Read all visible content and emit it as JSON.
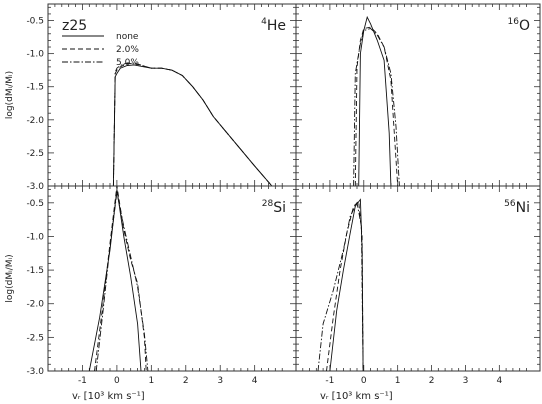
{
  "chart_data": [
    {
      "type": "line",
      "panel": "top-left",
      "element_label": "4He",
      "element_mass": "4",
      "element_symbol": "He",
      "xlabel": "",
      "ylabel": "log(dMᵢ/Mᵢ)",
      "xlim": [
        -2,
        5.2
      ],
      "ylim": [
        -3.0,
        -0.25
      ],
      "model_label": "z25",
      "legend": [
        "none",
        "2.0%",
        "5.0%"
      ],
      "series": [
        {
          "name": "none",
          "dash": "solid",
          "x": [
            -0.1,
            -0.05,
            0.0,
            0.1,
            0.3,
            0.5,
            0.8,
            1.0,
            1.3,
            1.6,
            1.9,
            2.2,
            2.5,
            2.8,
            3.2,
            3.6,
            4.0,
            4.5
          ],
          "y": [
            -3.0,
            -1.35,
            -1.3,
            -1.22,
            -1.18,
            -1.17,
            -1.2,
            -1.22,
            -1.22,
            -1.25,
            -1.33,
            -1.5,
            -1.7,
            -1.95,
            -2.2,
            -2.45,
            -2.7,
            -3.0
          ]
        },
        {
          "name": "2.0%",
          "dash": "dashed",
          "x": [
            -0.1,
            -0.05,
            0.0,
            0.1,
            0.3,
            0.5,
            0.8,
            1.0,
            1.3,
            1.6,
            1.9,
            2.2,
            2.5,
            2.8,
            3.2,
            3.6,
            4.0,
            4.5
          ],
          "y": [
            -3.0,
            -1.3,
            -1.25,
            -1.2,
            -1.15,
            -1.15,
            -1.19,
            -1.22,
            -1.22,
            -1.25,
            -1.33,
            -1.5,
            -1.7,
            -1.95,
            -2.2,
            -2.45,
            -2.7,
            -3.0
          ]
        },
        {
          "name": "5.0%",
          "dash": "dashdot",
          "x": [
            -0.1,
            -0.05,
            0.0,
            0.1,
            0.3,
            0.5,
            0.8,
            1.0,
            1.3,
            1.6,
            1.9,
            2.2,
            2.5,
            2.8,
            3.2,
            3.6,
            4.0,
            4.5
          ],
          "y": [
            -3.0,
            -1.28,
            -1.22,
            -1.18,
            -1.14,
            -1.14,
            -1.19,
            -1.22,
            -1.22,
            -1.25,
            -1.33,
            -1.5,
            -1.7,
            -1.95,
            -2.2,
            -2.45,
            -2.7,
            -3.0
          ]
        }
      ]
    },
    {
      "type": "line",
      "panel": "top-right",
      "element_label": "16O",
      "element_mass": "16",
      "element_symbol": "O",
      "xlabel": "",
      "ylabel": "",
      "xlim": [
        -2,
        5.2
      ],
      "ylim": [
        -3.0,
        -0.25
      ],
      "series": [
        {
          "name": "none",
          "dash": "solid",
          "x": [
            -0.15,
            -0.1,
            0.0,
            0.1,
            0.2,
            0.4,
            0.6,
            0.75,
            0.8
          ],
          "y": [
            -3.0,
            -1.0,
            -0.65,
            -0.45,
            -0.55,
            -0.8,
            -1.1,
            -2.2,
            -3.0
          ]
        },
        {
          "name": "2.0%",
          "dash": "dashed",
          "x": [
            -0.25,
            -0.2,
            -0.1,
            0.0,
            0.2,
            0.4,
            0.6,
            0.8,
            0.9,
            1.0
          ],
          "y": [
            -3.0,
            -1.2,
            -0.8,
            -0.62,
            -0.6,
            -0.7,
            -0.9,
            -1.4,
            -2.2,
            -3.0
          ]
        },
        {
          "name": "5.0%",
          "dash": "dashdot",
          "x": [
            -0.3,
            -0.25,
            -0.1,
            0.0,
            0.2,
            0.4,
            0.6,
            0.8,
            0.95,
            1.05
          ],
          "y": [
            -3.0,
            -1.3,
            -0.85,
            -0.65,
            -0.62,
            -0.72,
            -0.9,
            -1.3,
            -2.1,
            -3.0
          ]
        }
      ]
    },
    {
      "type": "line",
      "panel": "bottom-left",
      "element_label": "28Si",
      "element_mass": "28",
      "element_symbol": "Si",
      "xlabel": "vᵣ [10³ km s⁻¹]",
      "ylabel": "log(dMᵢ/Mᵢ)",
      "xlim": [
        -2,
        5.2
      ],
      "ylim": [
        -3.0,
        -0.25
      ],
      "series": [
        {
          "name": "none",
          "dash": "solid",
          "x": [
            -0.8,
            -0.5,
            -0.2,
            0.0,
            0.2,
            0.4,
            0.6,
            0.7
          ],
          "y": [
            -3.0,
            -2.2,
            -1.2,
            -0.3,
            -1.0,
            -1.6,
            -2.3,
            -3.0
          ]
        },
        {
          "name": "2.0%",
          "dash": "dashed",
          "x": [
            -0.65,
            -0.4,
            -0.2,
            0.0,
            0.2,
            0.4,
            0.6,
            0.8,
            0.85
          ],
          "y": [
            -3.0,
            -2.0,
            -1.1,
            -0.25,
            -0.9,
            -1.35,
            -1.7,
            -2.5,
            -3.0
          ]
        },
        {
          "name": "5.0%",
          "dash": "dashdot",
          "x": [
            -0.6,
            -0.4,
            -0.2,
            0.0,
            0.2,
            0.4,
            0.6,
            0.8,
            0.9
          ],
          "y": [
            -3.0,
            -2.1,
            -1.15,
            -0.35,
            -0.85,
            -1.3,
            -1.75,
            -2.45,
            -3.0
          ]
        }
      ]
    },
    {
      "type": "line",
      "panel": "bottom-right",
      "element_label": "56Ni",
      "element_mass": "56",
      "element_symbol": "Ni",
      "xlabel": "vᵣ [10³ km s⁻¹]",
      "ylabel": "",
      "xlim": [
        -2,
        5.2
      ],
      "ylim": [
        -3.0,
        -0.25
      ],
      "series": [
        {
          "name": "none",
          "dash": "solid",
          "x": [
            -1.0,
            -0.8,
            -0.6,
            -0.4,
            -0.25,
            -0.1,
            -0.05,
            -0.02
          ],
          "y": [
            -3.0,
            -2.1,
            -1.5,
            -0.95,
            -0.55,
            -0.45,
            -1.2,
            -3.0
          ]
        },
        {
          "name": "2.0%",
          "dash": "dashed",
          "x": [
            -1.1,
            -0.9,
            -0.7,
            -0.5,
            -0.3,
            -0.15,
            -0.05,
            -0.02
          ],
          "y": [
            -3.0,
            -2.2,
            -1.5,
            -0.95,
            -0.55,
            -0.48,
            -1.0,
            -3.0
          ]
        },
        {
          "name": "5.0%",
          "dash": "dashdot",
          "x": [
            -1.35,
            -1.2,
            -0.9,
            -0.6,
            -0.4,
            -0.2,
            -0.07,
            -0.02
          ],
          "y": [
            -3.0,
            -2.3,
            -1.8,
            -1.2,
            -0.7,
            -0.5,
            -0.85,
            -3.0
          ]
        }
      ]
    }
  ],
  "axes": {
    "x_ticks": [
      "-1",
      "0",
      "1",
      "2",
      "3",
      "4"
    ],
    "y_ticks": [
      "-0.5",
      "-1.0",
      "-1.5",
      "-2.0",
      "-2.5",
      "-3.0"
    ]
  }
}
